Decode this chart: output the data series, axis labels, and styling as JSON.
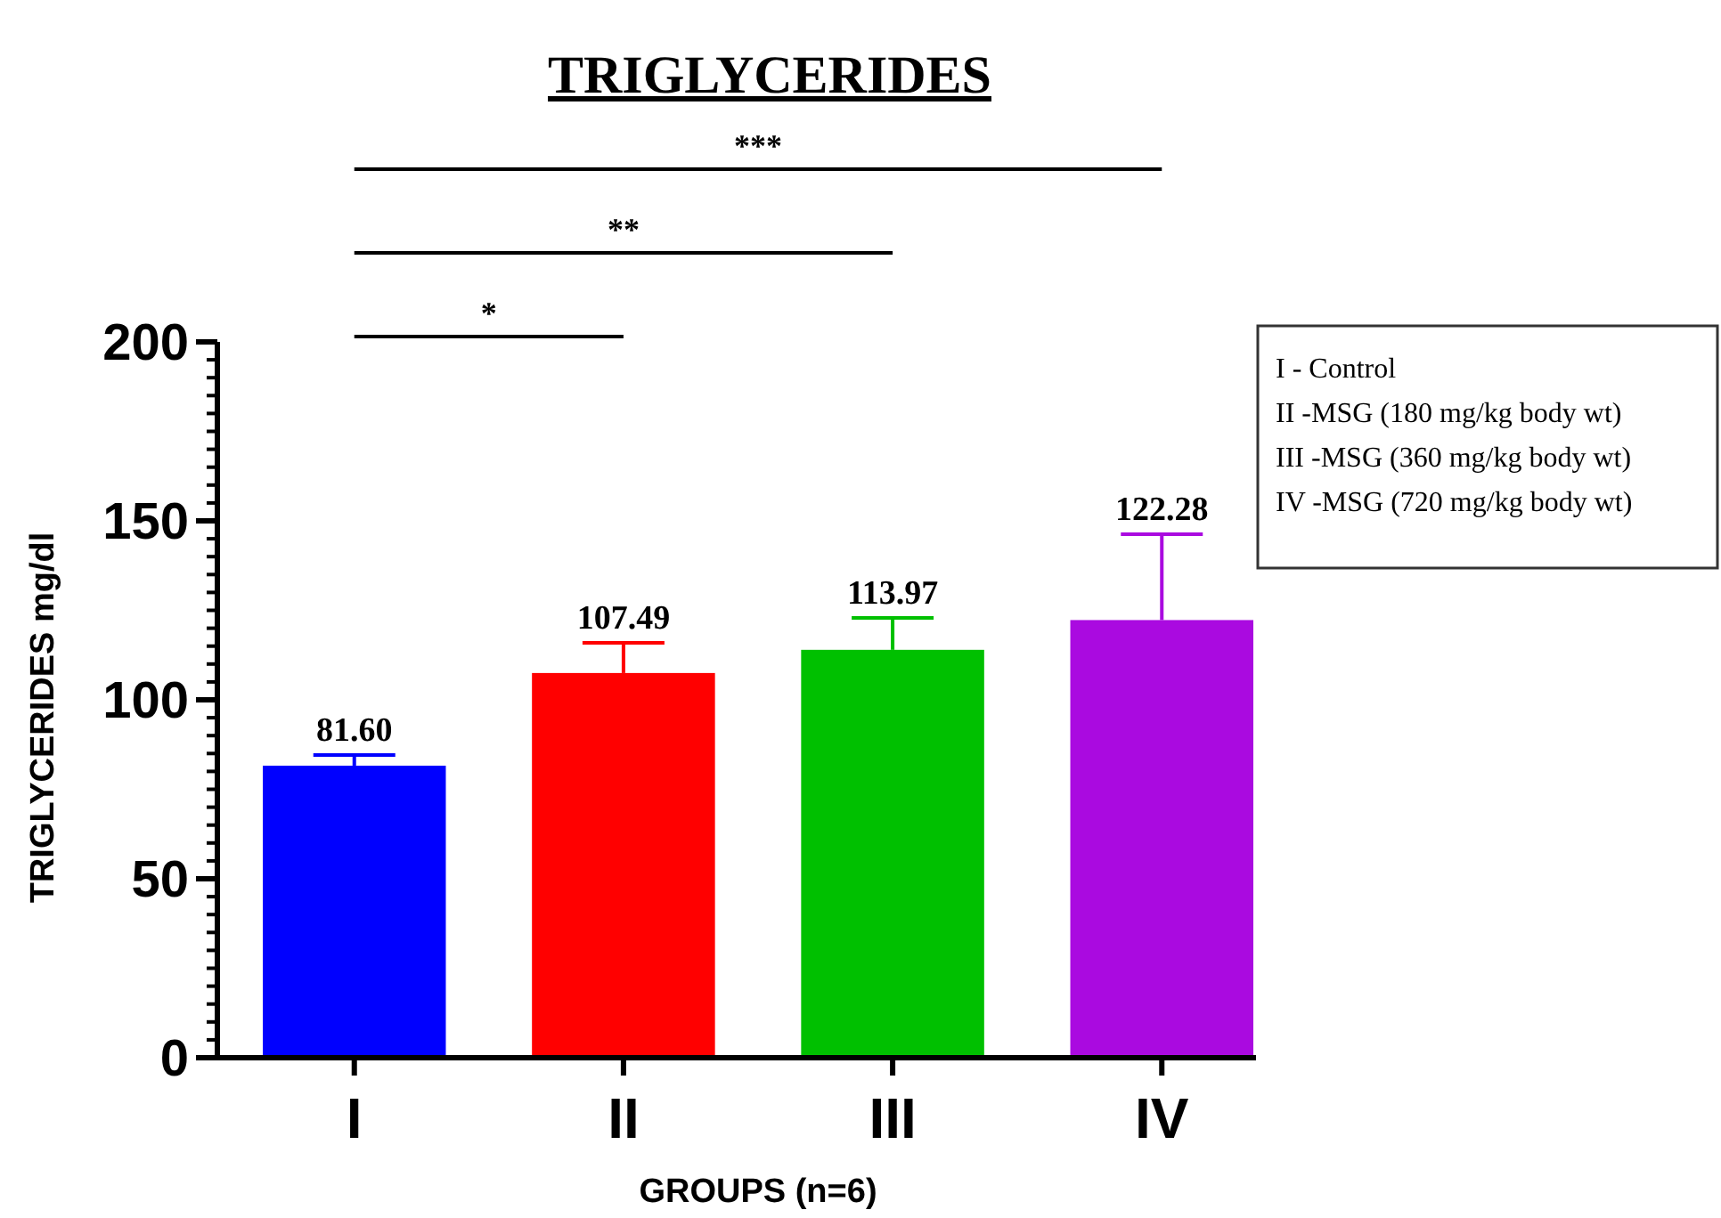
{
  "chart_data": {
    "type": "bar",
    "title": "TRIGLYCERIDES",
    "xlabel": "GROUPS (n=6)",
    "ylabel": "TRIGLYCERIDES mg/dl",
    "categories": [
      "I",
      "II",
      "III",
      "IV"
    ],
    "values": [
      81.6,
      107.49,
      113.97,
      122.28
    ],
    "colors": [
      "#0000ff",
      "#ff0000",
      "#00c000",
      "#aa0ae0"
    ],
    "errors": [
      3.0,
      8.4,
      8.9,
      24.0
    ],
    "value_labels": [
      "81.60",
      "107.49",
      "113.97",
      "122.28"
    ],
    "ylim": [
      0,
      200
    ],
    "yticks": [
      0,
      {
        "value": 5,
        "label": null
      },
      {
        "value": 10,
        "label": null
      },
      {
        "value": 15,
        "label": null
      },
      {
        "value": 20,
        "label": null
      },
      {
        "value": 25,
        "label": null
      },
      {
        "value": 30,
        "label": null
      },
      {
        "value": 35,
        "label": null
      },
      {
        "value": 40,
        "label": null
      },
      {
        "value": 45,
        "label": null
      },
      50,
      {
        "value": 55,
        "label": null
      },
      {
        "value": 60,
        "label": null
      },
      {
        "value": 65,
        "label": null
      },
      {
        "value": 70,
        "label": null
      },
      {
        "value": 75,
        "label": null
      },
      {
        "value": 80,
        "label": null
      },
      {
        "value": 85,
        "label": null
      },
      {
        "value": 90,
        "label": null
      },
      {
        "value": 95,
        "label": null
      },
      100,
      {
        "value": 105,
        "label": null
      },
      {
        "value": 110,
        "label": null
      },
      {
        "value": 115,
        "label": null
      },
      {
        "value": 120,
        "label": null
      },
      {
        "value": 125,
        "label": null
      },
      {
        "value": 130,
        "label": null
      },
      {
        "value": 135,
        "label": null
      },
      {
        "value": 140,
        "label": null
      },
      {
        "value": 145,
        "label": null
      },
      150,
      {
        "value": 155,
        "label": null
      },
      {
        "value": 160,
        "label": null
      },
      {
        "value": 165,
        "label": null
      },
      {
        "value": 170,
        "label": null
      },
      {
        "value": 175,
        "label": null
      },
      {
        "value": 180,
        "label": null
      },
      {
        "value": 185,
        "label": null
      },
      {
        "value": 190,
        "label": null
      },
      {
        "value": 195,
        "label": null
      },
      200
    ],
    "annotations": [
      "*",
      "**",
      "***",
      "I - Control",
      "II -MSG (180 mg/kg body wt)",
      "III -MSG (360 mg/kg body wt)",
      "IV -MSG (720 mg/kg body wt)"
    ],
    "grid": false
  }
}
